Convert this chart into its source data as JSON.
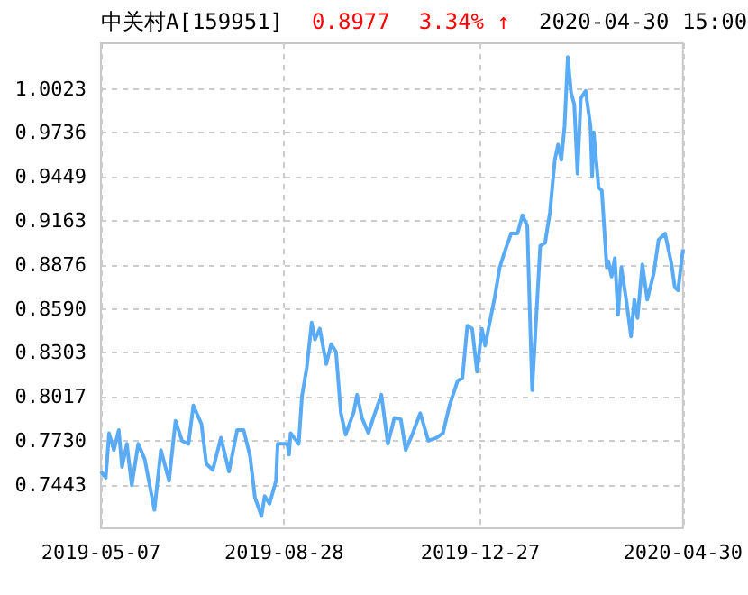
{
  "chart_data": {
    "type": "line",
    "title": "中关村A[159951]",
    "annotations": [
      "0.8977",
      "3.34% ↑",
      "2020-04-30 15:00"
    ],
    "x": [
      "2019-05-07",
      "2019-05-10",
      "2019-05-12",
      "2019-05-15",
      "2019-05-18",
      "2019-05-20",
      "2019-05-23",
      "2019-05-26",
      "2019-05-30",
      "2019-06-03",
      "2019-06-09",
      "2019-06-13",
      "2019-06-18",
      "2019-06-22",
      "2019-06-26",
      "2019-06-30",
      "2019-07-03",
      "2019-07-08",
      "2019-07-11",
      "2019-07-15",
      "2019-07-20",
      "2019-07-25",
      "2019-07-30",
      "2019-08-03",
      "2019-08-07",
      "2019-08-10",
      "2019-08-14",
      "2019-08-16",
      "2019-08-19",
      "2019-08-23",
      "2019-08-24",
      "2019-08-30",
      "2019-08-31",
      "2019-09-01",
      "2019-09-06",
      "2019-09-08",
      "2019-09-11",
      "2019-09-14",
      "2019-09-16",
      "2019-09-19",
      "2019-09-23",
      "2019-09-26",
      "2019-09-29",
      "2019-10-02",
      "2019-10-05",
      "2019-10-10",
      "2019-10-12",
      "2019-10-15",
      "2019-10-19",
      "2019-10-22",
      "2019-10-27",
      "2019-10-31",
      "2019-11-04",
      "2019-11-08",
      "2019-11-11",
      "2019-11-15",
      "2019-11-20",
      "2019-11-25",
      "2019-11-30",
      "2019-12-04",
      "2019-12-08",
      "2019-12-13",
      "2019-12-16",
      "2019-12-19",
      "2019-12-22",
      "2019-12-25",
      "2019-12-28",
      "2019-12-30",
      "2020-01-05",
      "2020-01-08",
      "2020-01-11",
      "2020-01-15",
      "2020-01-19",
      "2020-01-22",
      "2020-01-25",
      "2020-01-28",
      "2020-02-02",
      "2020-02-05",
      "2020-02-08",
      "2020-02-11",
      "2020-02-13",
      "2020-02-15",
      "2020-02-17",
      "2020-02-19",
      "2020-02-21",
      "2020-02-23",
      "2020-02-25",
      "2020-02-27",
      "2020-03-01",
      "2020-03-04",
      "2020-03-05",
      "2020-03-06",
      "2020-03-09",
      "2020-03-11",
      "2020-03-14",
      "2020-03-15",
      "2020-03-17",
      "2020-03-19",
      "2020-03-21",
      "2020-03-23",
      "2020-03-26",
      "2020-03-29",
      "2020-03-31",
      "2020-04-02",
      "2020-04-05",
      "2020-04-08",
      "2020-04-12",
      "2020-04-15",
      "2020-04-19",
      "2020-04-23",
      "2020-04-25",
      "2020-04-27",
      "2020-04-30"
    ],
    "series": [
      {
        "color": "#5aabf5",
        "values": [
          0.753,
          0.749,
          0.778,
          0.767,
          0.78,
          0.756,
          0.771,
          0.744,
          0.771,
          0.761,
          0.728,
          0.767,
          0.747,
          0.786,
          0.773,
          0.771,
          0.796,
          0.784,
          0.758,
          0.754,
          0.775,
          0.753,
          0.78,
          0.78,
          0.763,
          0.736,
          0.724,
          0.737,
          0.732,
          0.747,
          0.771,
          0.771,
          0.764,
          0.778,
          0.771,
          0.802,
          0.821,
          0.85,
          0.839,
          0.846,
          0.823,
          0.836,
          0.831,
          0.791,
          0.777,
          0.792,
          0.803,
          0.788,
          0.778,
          0.788,
          0.803,
          0.771,
          0.788,
          0.787,
          0.767,
          0.777,
          0.791,
          0.773,
          0.775,
          0.778,
          0.796,
          0.812,
          0.814,
          0.848,
          0.846,
          0.818,
          0.846,
          0.835,
          0.867,
          0.886,
          0.896,
          0.908,
          0.908,
          0.92,
          0.913,
          0.806,
          0.9,
          0.902,
          0.922,
          0.956,
          0.966,
          0.956,
          0.978,
          1.023,
          1.0,
          0.992,
          0.947,
          0.996,
          1.001,
          0.978,
          0.945,
          0.974,
          0.938,
          0.936,
          0.886,
          0.89,
          0.88,
          0.892,
          0.855,
          0.886,
          0.865,
          0.841,
          0.865,
          0.853,
          0.888,
          0.865,
          0.882,
          0.904,
          0.908,
          0.888,
          0.873,
          0.871,
          0.8977
        ]
      }
    ],
    "xlim": [
      "2019-05-07",
      "2020-04-30"
    ],
    "xticks": [
      "2019-05-07",
      "2019-08-28",
      "2019-12-27",
      "2020-04-30"
    ],
    "ylim": [
      0.716,
      1.032
    ],
    "yticks": [
      0.7443,
      {
        "value": 0.773,
        "label": "0.7730"
      },
      0.8017,
      0.8303,
      {
        "value": 0.859,
        "label": "0.8590"
      },
      0.8876,
      0.9163,
      0.9449,
      0.9736,
      1.0023
    ],
    "grid": true,
    "marker": "none",
    "line_style": "solid"
  }
}
